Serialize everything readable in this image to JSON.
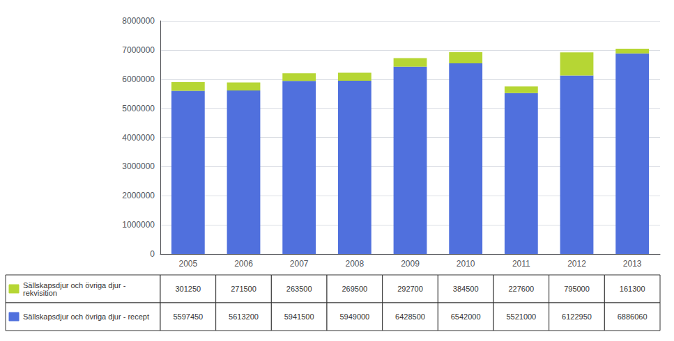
{
  "chart_data": {
    "type": "bar",
    "categories": [
      "2005",
      "2006",
      "2007",
      "2008",
      "2009",
      "2010",
      "2011",
      "2012",
      "2013"
    ],
    "series": [
      {
        "name": "Sällskapsdjur och övriga djur - recept",
        "values": [
          5597450,
          5613200,
          5941500,
          5949000,
          6428500,
          6542000,
          5521000,
          6122950,
          6886060
        ]
      },
      {
        "name": "Sällskapsdjur och övriga djur -\nrekvisition",
        "values": [
          301250,
          271500,
          263500,
          269500,
          292700,
          384500,
          227600,
          795000,
          161300
        ]
      }
    ],
    "stacked": true,
    "ylim": [
      0,
      8000000
    ],
    "yticks": [
      0,
      1000000,
      2000000,
      3000000,
      4000000,
      5000000,
      6000000,
      7000000,
      8000000
    ],
    "grid": true
  }
}
